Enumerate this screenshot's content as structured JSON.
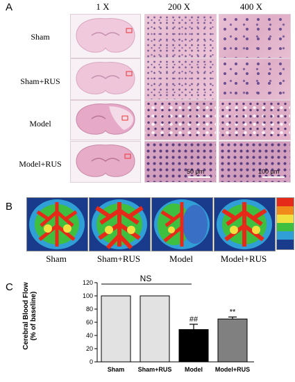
{
  "panel_a": {
    "letter": "A",
    "columns": [
      "1 X",
      "200 X",
      "400 X"
    ],
    "rows": [
      "Sham",
      "Sham+RUS",
      "Model",
      "Model+RUS"
    ],
    "scale_200": "50 μm",
    "scale_400": "100 μm"
  },
  "panel_b": {
    "letter": "B",
    "labels": [
      "Sham",
      "Sham+RUS",
      "Model",
      "Model+RUS"
    ]
  },
  "panel_c": {
    "letter": "C",
    "ns_label": "NS",
    "ylabel_line1": "Cerebral Blood Flow",
    "ylabel_line2": "(% of baseline)",
    "significance": {
      "model": "##",
      "model_rus": "**"
    }
  },
  "colors": {
    "bar_sham": "#e2e2e2",
    "bar_sham_rus": "#e2e2e2",
    "bar_model": "#000000",
    "bar_model_rus": "#808080"
  },
  "chart_data": {
    "type": "bar",
    "categories": [
      "Sham",
      "Sham+RUS",
      "Model",
      "Model+RUS"
    ],
    "values": [
      100,
      100,
      49,
      65
    ],
    "errors": [
      0,
      0,
      8,
      3
    ],
    "ylim": [
      0,
      120
    ],
    "yticks": [
      0,
      20,
      40,
      60,
      80,
      100,
      120
    ],
    "ylabel": "Cerebral Blood Flow (% of baseline)",
    "xlabel": "",
    "grid": false
  }
}
